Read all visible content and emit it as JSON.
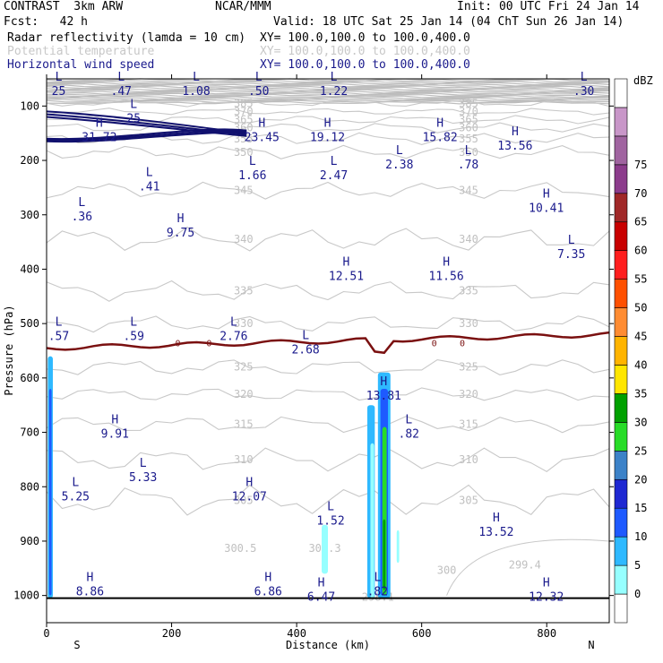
{
  "header": {
    "model": "CONTRAST  3km ARW",
    "org": "NCAR/MMM",
    "init": "Init: 00 UTC Fri 24 Jan 14",
    "fcst": "Fcst:   42 h",
    "valid": "Valid: 18 UTC Sat 25 Jan 14 (04 ChT Sun 26 Jan 14)"
  },
  "fields": [
    {
      "name": "Radar reflectivity (lamda = 10 cm)",
      "xy": "XY= 100.0,100.0 to 100.0,400.0",
      "color": "#000000"
    },
    {
      "name": "Potential temperature",
      "xy": "XY= 100.0,100.0 to 100.0,400.0",
      "color": "#c8c8c8"
    },
    {
      "name": "Horizontal wind speed",
      "xy": "XY= 100.0,100.0 to 100.0,400.0",
      "color": "#1a1a8c"
    }
  ],
  "chart_data": {
    "type": "cross-section",
    "xlabel": "Distance (km)",
    "ylabel": "Pressure (hPa)",
    "xlim": [
      0,
      900
    ],
    "ylim": [
      1050,
      50
    ],
    "x_ticks": [
      "0",
      "200",
      "400",
      "600",
      "800"
    ],
    "y_ticks": [
      "100",
      "200",
      "300",
      "400",
      "500",
      "600",
      "700",
      "800",
      "900",
      "1000"
    ],
    "x_end_labels": {
      "left": "S",
      "right": "N"
    },
    "colorbar": {
      "unit": "dBZ",
      "levels": [
        "0",
        "5",
        "10",
        "15",
        "20",
        "25",
        "30",
        "35",
        "40",
        "45",
        "50",
        "55",
        "60",
        "65",
        "70",
        "75"
      ],
      "colors": [
        "#ffffff",
        "#96ffff",
        "#2eb9ff",
        "#1e5aff",
        "#1e28d2",
        "#3c82c8",
        "#28dc28",
        "#00a000",
        "#ffe600",
        "#ffb400",
        "#ff8c32",
        "#ff5000",
        "#ff1e1e",
        "#c80000",
        "#a02828",
        "#8c3c8c",
        "#a064a0",
        "#c896c8",
        "#ffffff"
      ]
    },
    "wind_extrema": [
      {
        "kind": "L",
        "value": "25",
        "x": 5,
        "p": 70
      },
      {
        "kind": "L",
        "value": ".47",
        "x": 105,
        "p": 70
      },
      {
        "kind": "L",
        "value": "1.08",
        "x": 225,
        "p": 70
      },
      {
        "kind": "L",
        "value": ".50",
        "x": 325,
        "p": 70
      },
      {
        "kind": "L",
        "value": "1.22",
        "x": 445,
        "p": 70
      },
      {
        "kind": "L",
        "value": ".30",
        "x": 845,
        "p": 70
      },
      {
        "kind": "H",
        "value": "31.72",
        "x": 70,
        "p": 155
      },
      {
        "kind": "L",
        "value": "25",
        "x": 125,
        "p": 120
      },
      {
        "kind": "H",
        "value": "23.45",
        "x": 330,
        "p": 155
      },
      {
        "kind": "H",
        "value": "19.12",
        "x": 435,
        "p": 155
      },
      {
        "kind": "H",
        "value": "15.82",
        "x": 615,
        "p": 155
      },
      {
        "kind": "H",
        "value": "13.56",
        "x": 735,
        "p": 170
      },
      {
        "kind": "L",
        "value": ".41",
        "x": 150,
        "p": 245
      },
      {
        "kind": "L",
        "value": "1.66",
        "x": 315,
        "p": 225
      },
      {
        "kind": "L",
        "value": "2.47",
        "x": 445,
        "p": 225
      },
      {
        "kind": "L",
        "value": "2.38",
        "x": 550,
        "p": 205
      },
      {
        "kind": "L",
        "value": ".78",
        "x": 660,
        "p": 205
      },
      {
        "kind": "H",
        "value": "10.41",
        "x": 785,
        "p": 285
      },
      {
        "kind": "L",
        "value": ".36",
        "x": 42,
        "p": 300
      },
      {
        "kind": "H",
        "value": "9.75",
        "x": 200,
        "p": 330
      },
      {
        "kind": "L",
        "value": "7.35",
        "x": 825,
        "p": 370
      },
      {
        "kind": "H",
        "value": "12.51",
        "x": 465,
        "p": 410
      },
      {
        "kind": "H",
        "value": "11.56",
        "x": 625,
        "p": 410
      },
      {
        "kind": "L",
        "value": ".57",
        "x": 5,
        "p": 520
      },
      {
        "kind": "L",
        "value": ".59",
        "x": 125,
        "p": 520
      },
      {
        "kind": "L",
        "value": "2.76",
        "x": 285,
        "p": 520
      },
      {
        "kind": "L",
        "value": "2.68",
        "x": 400,
        "p": 545
      },
      {
        "kind": "H",
        "value": "13.81",
        "x": 525,
        "p": 630
      },
      {
        "kind": "H",
        "value": "9.91",
        "x": 95,
        "p": 700
      },
      {
        "kind": "L",
        "value": ".82",
        "x": 565,
        "p": 700
      },
      {
        "kind": "L",
        "value": "5.33",
        "x": 140,
        "p": 780
      },
      {
        "kind": "L",
        "value": "5.25",
        "x": 32,
        "p": 815
      },
      {
        "kind": "H",
        "value": "12.07",
        "x": 310,
        "p": 815
      },
      {
        "kind": "L",
        "value": "1.52",
        "x": 440,
        "p": 860
      },
      {
        "kind": "H",
        "value": "13.52",
        "x": 705,
        "p": 880
      },
      {
        "kind": "L",
        "value": ".82",
        "x": 515,
        "p": 990
      },
      {
        "kind": "H",
        "value": "8.86",
        "x": 55,
        "p": 990
      },
      {
        "kind": "H",
        "value": "6.86",
        "x": 340,
        "p": 990
      },
      {
        "kind": "H",
        "value": "6.47",
        "x": 425,
        "p": 1000
      },
      {
        "kind": "H",
        "value": "12.32",
        "x": 785,
        "p": 1000
      }
    ],
    "theta_contours": [
      "385",
      "370",
      "365",
      "360",
      "355",
      "350",
      "345",
      "340",
      "335",
      "330",
      "325",
      "320",
      "315",
      "310",
      "305",
      "300.5",
      "300.3",
      "300",
      "299.4",
      "298.1"
    ],
    "zero_line_label": "0"
  }
}
